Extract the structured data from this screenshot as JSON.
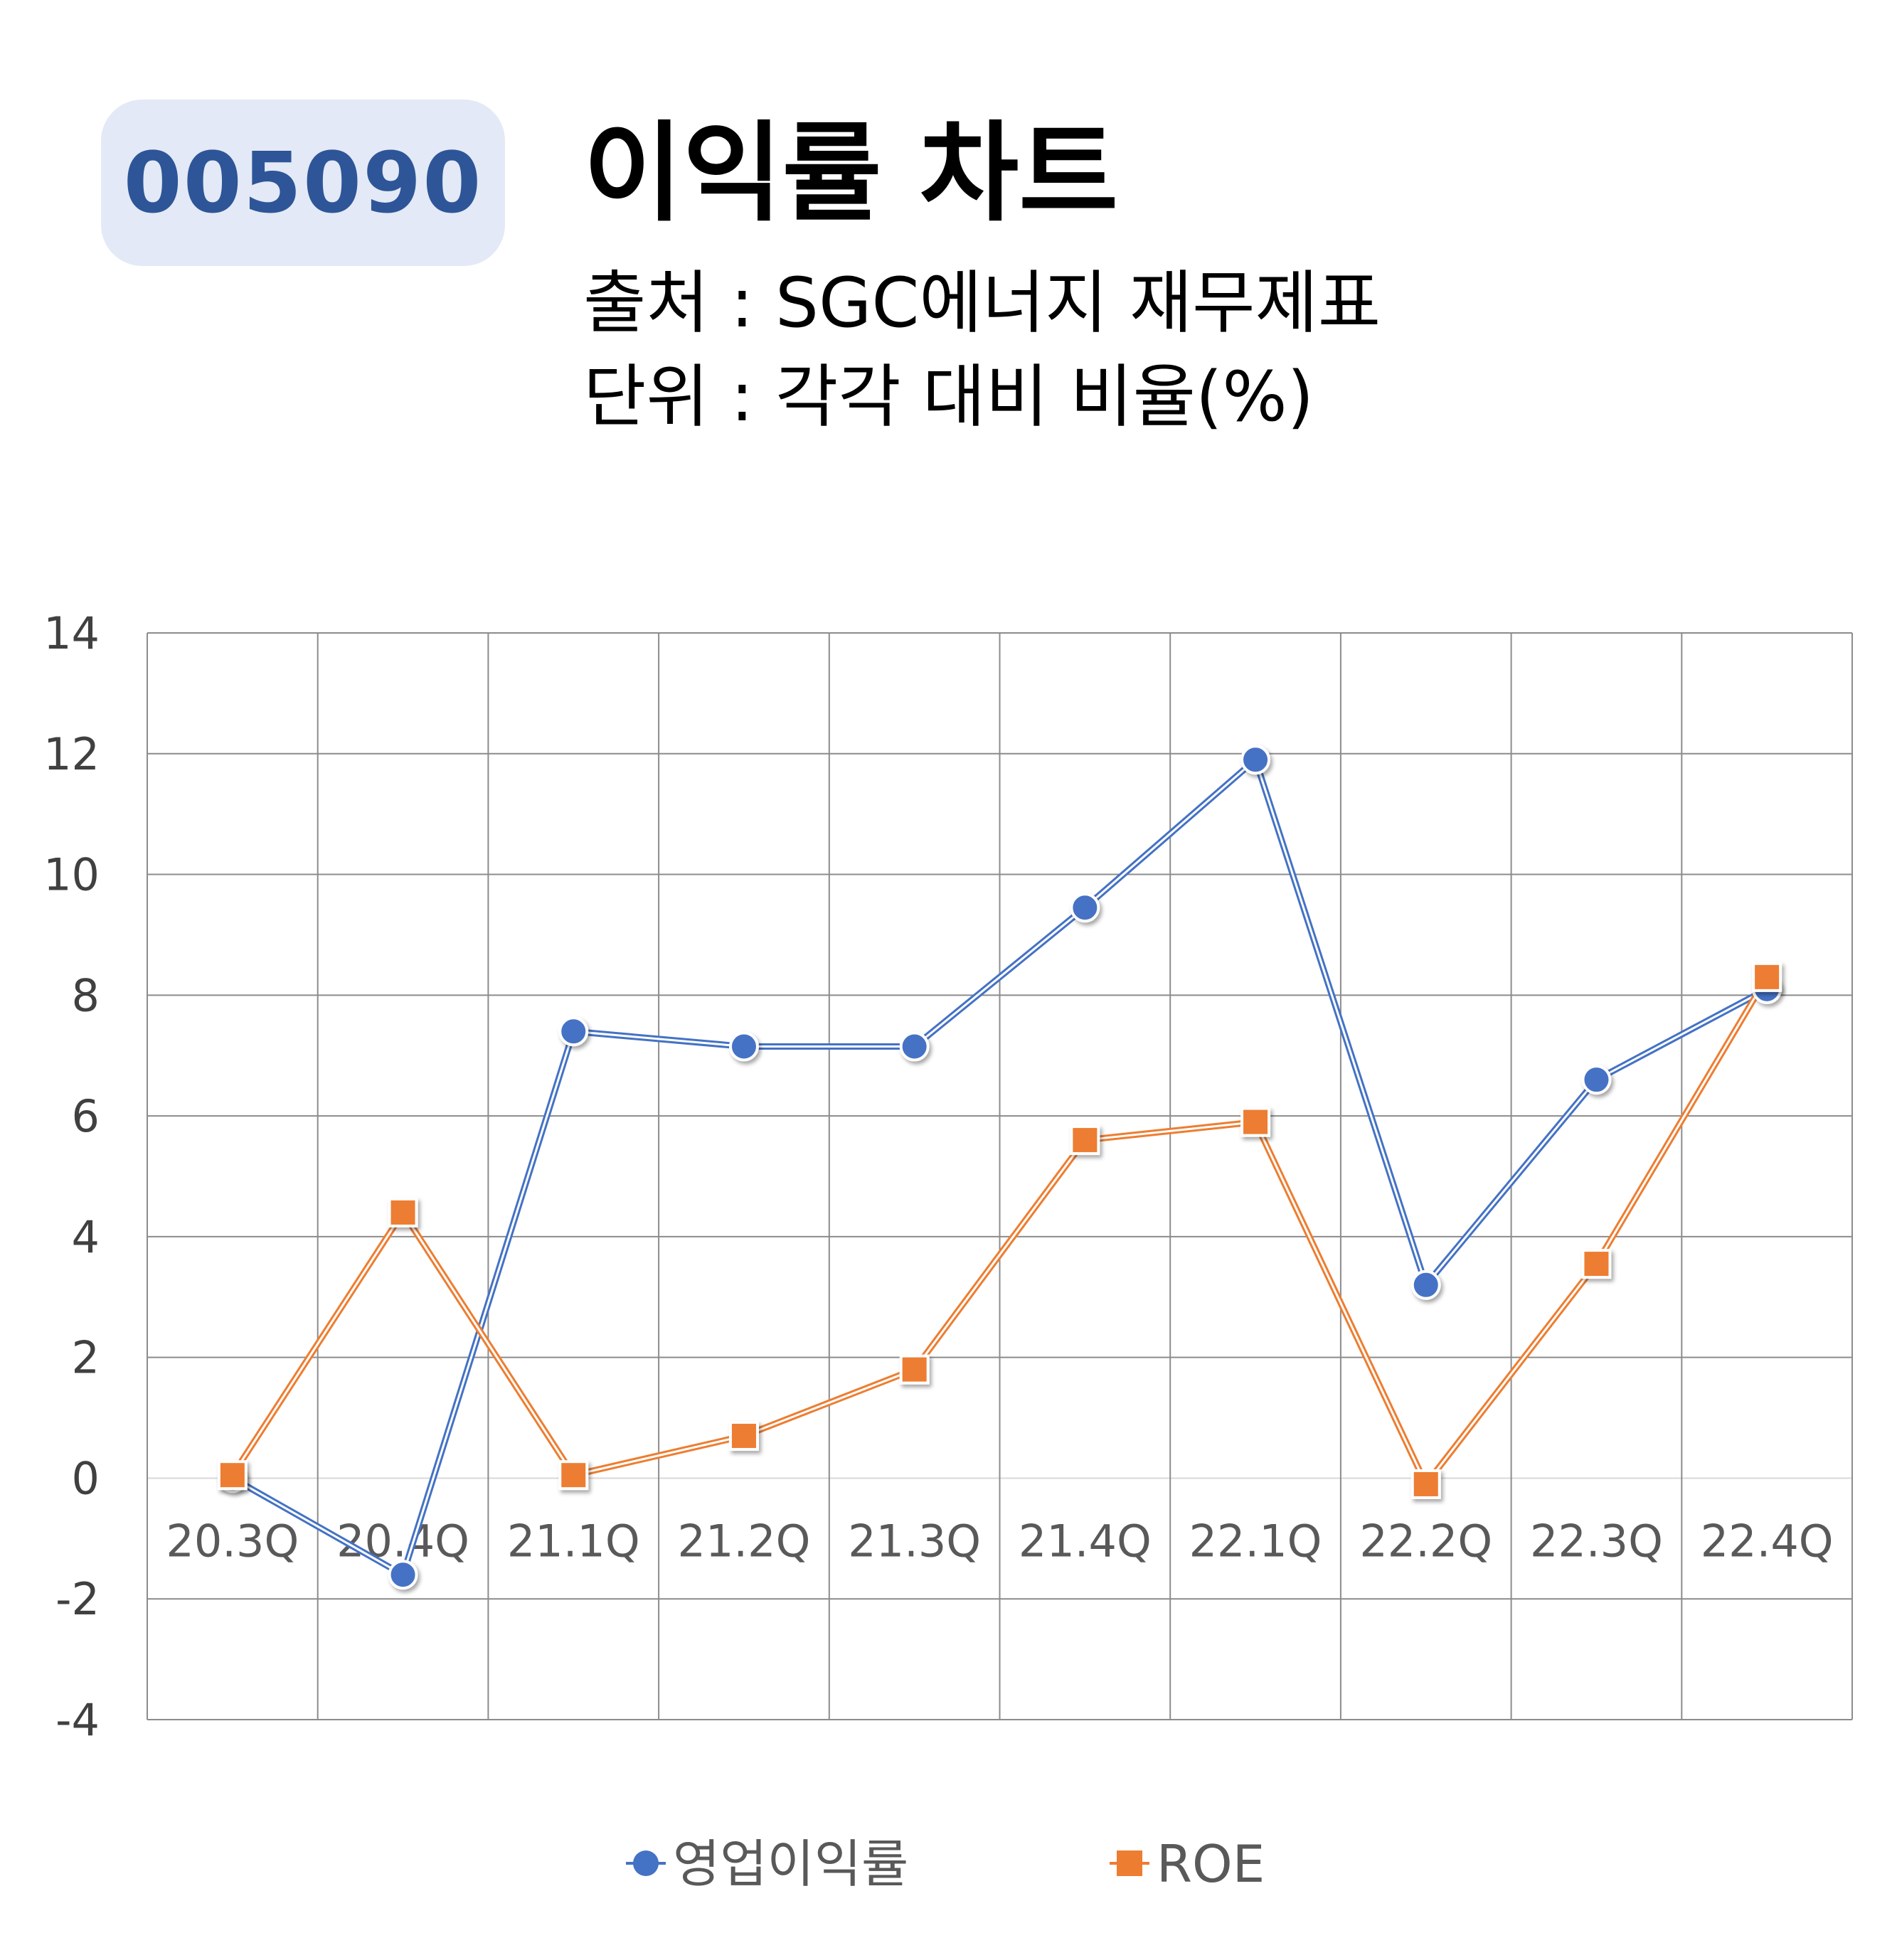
{
  "header": {
    "ticker": "005090",
    "title": "이익률 차트",
    "source": "출처 : SGC에너지 재무제표",
    "unit": "단위 : 각각 대비 비율(%)"
  },
  "chart_data": {
    "type": "line",
    "categories": [
      "20.3Q",
      "20.4Q",
      "21.1Q",
      "21.2Q",
      "21.3Q",
      "21.4Q",
      "22.1Q",
      "22.2Q",
      "22.3Q",
      "22.4Q"
    ],
    "ylim": [
      -4,
      14
    ],
    "yticks": [
      -4,
      -2,
      0,
      2,
      4,
      6,
      8,
      10,
      12,
      14
    ],
    "grid": true,
    "legend_position": "bottom",
    "series": [
      {
        "name": "영업이익률",
        "color": "#4472c4",
        "marker": "circle",
        "values": [
          0.0,
          -1.6,
          7.4,
          7.15,
          7.15,
          9.45,
          11.9,
          3.2,
          6.6,
          8.1
        ]
      },
      {
        "name": "ROE",
        "color": "#ed7d31",
        "marker": "square",
        "values": [
          0.05,
          4.4,
          0.05,
          0.7,
          1.8,
          5.6,
          5.9,
          -0.1,
          3.55,
          8.3
        ]
      }
    ]
  }
}
